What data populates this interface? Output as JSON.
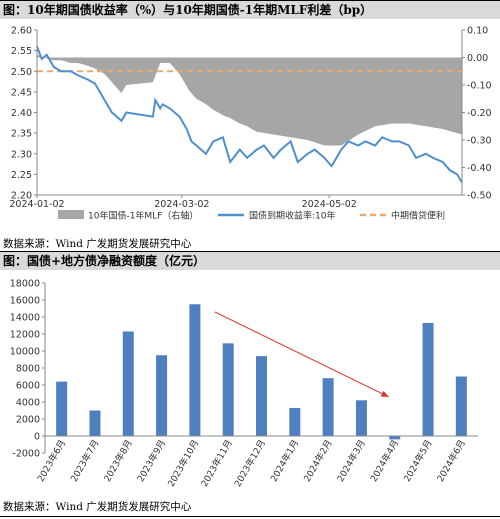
{
  "chart1": {
    "title": "图：10年期国债收益率（%）与10年期国债-1年期MLF利差（bp）",
    "source": "数据来源：Wind  广发期货发展研究中心",
    "chart_data": {
      "type": "line",
      "x_ticks": [
        "2024-01-02",
        "2024-03-02",
        "2024-05-02"
      ],
      "x_range": [
        "2024-01-02",
        "2024-06-26"
      ],
      "left_axis": {
        "range": [
          2.2,
          2.6
        ],
        "ticks": [
          "2.20",
          "2.25",
          "2.30",
          "2.35",
          "2.40",
          "2.45",
          "2.50",
          "2.55",
          "2.60"
        ]
      },
      "right_axis": {
        "range": [
          -0.5,
          0.1
        ],
        "ticks": [
          "-0.50",
          "-0.40",
          "-0.30",
          "-0.20",
          "-0.10",
          "0.00",
          "0.10"
        ]
      },
      "series": [
        {
          "name": "10年国债-1年MLF（右轴）",
          "type": "area",
          "axis": "right",
          "color": "#a6a6a6",
          "x": [
            "2024-01-02",
            "2024-01-05",
            "2024-01-08",
            "2024-01-12",
            "2024-01-16",
            "2024-01-19",
            "2024-01-23",
            "2024-01-26",
            "2024-01-30",
            "2024-02-02",
            "2024-02-06",
            "2024-02-08",
            "2024-02-19",
            "2024-02-22",
            "2024-02-26",
            "2024-03-01",
            "2024-03-05",
            "2024-03-08",
            "2024-03-12",
            "2024-03-15",
            "2024-03-19",
            "2024-03-22",
            "2024-03-26",
            "2024-03-29",
            "2024-04-02",
            "2024-04-09",
            "2024-04-16",
            "2024-04-23",
            "2024-04-30",
            "2024-05-07",
            "2024-05-14",
            "2024-05-21",
            "2024-05-28",
            "2024-06-04",
            "2024-06-11",
            "2024-06-18",
            "2024-06-26"
          ],
          "values": [
            0.01,
            0.0,
            -0.01,
            -0.01,
            -0.02,
            -0.02,
            -0.03,
            -0.04,
            -0.06,
            -0.09,
            -0.13,
            -0.1,
            -0.09,
            -0.02,
            -0.02,
            -0.06,
            -0.12,
            -0.15,
            -0.17,
            -0.19,
            -0.21,
            -0.22,
            -0.24,
            -0.25,
            -0.27,
            -0.28,
            -0.29,
            -0.3,
            -0.32,
            -0.32,
            -0.28,
            -0.25,
            -0.24,
            -0.24,
            -0.25,
            -0.26,
            -0.28
          ]
        },
        {
          "name": "国债到期收益率:10年",
          "type": "line",
          "axis": "left",
          "color": "#4f8fcd",
          "x": [
            "2024-01-02",
            "2024-01-04",
            "2024-01-06",
            "2024-01-09",
            "2024-01-12",
            "2024-01-16",
            "2024-01-19",
            "2024-01-23",
            "2024-01-26",
            "2024-01-30",
            "2024-02-02",
            "2024-02-06",
            "2024-02-08",
            "2024-02-19",
            "2024-02-20",
            "2024-02-22",
            "2024-02-23",
            "2024-02-26",
            "2024-03-01",
            "2024-03-04",
            "2024-03-06",
            "2024-03-08",
            "2024-03-12",
            "2024-03-15",
            "2024-03-19",
            "2024-03-22",
            "2024-03-26",
            "2024-03-29",
            "2024-04-02",
            "2024-04-05",
            "2024-04-09",
            "2024-04-12",
            "2024-04-16",
            "2024-04-19",
            "2024-04-23",
            "2024-04-26",
            "2024-04-30",
            "2024-05-03",
            "2024-05-07",
            "2024-05-10",
            "2024-05-14",
            "2024-05-17",
            "2024-05-21",
            "2024-05-24",
            "2024-05-28",
            "2024-05-31",
            "2024-06-04",
            "2024-06-07",
            "2024-06-11",
            "2024-06-14",
            "2024-06-18",
            "2024-06-21",
            "2024-06-24",
            "2024-06-26"
          ],
          "values": [
            2.56,
            2.53,
            2.54,
            2.51,
            2.5,
            2.5,
            2.49,
            2.48,
            2.47,
            2.43,
            2.4,
            2.38,
            2.4,
            2.39,
            2.43,
            2.41,
            2.42,
            2.41,
            2.39,
            2.36,
            2.33,
            2.32,
            2.3,
            2.33,
            2.34,
            2.28,
            2.31,
            2.29,
            2.31,
            2.32,
            2.29,
            2.31,
            2.33,
            2.28,
            2.3,
            2.31,
            2.29,
            2.27,
            2.31,
            2.33,
            2.32,
            2.33,
            2.32,
            2.34,
            2.33,
            2.33,
            2.32,
            2.29,
            2.3,
            2.29,
            2.28,
            2.26,
            2.25,
            2.23
          ]
        },
        {
          "name": "中期借贷便利",
          "type": "line",
          "axis": "left",
          "style": "dashed",
          "color": "#f0a868",
          "x": [
            "2024-01-02",
            "2024-06-26"
          ],
          "values": [
            2.5,
            2.5
          ]
        }
      ]
    }
  },
  "chart2": {
    "title": "图：国债+地方债净融资额度（亿元）",
    "source": "数据来源：Wind  广发期货发展研究中心",
    "chart_data": {
      "type": "bar",
      "categories": [
        "2023年6月",
        "2023年7月",
        "2023年8月",
        "2023年9月",
        "2023年10月",
        "2023年11月",
        "2023年12月",
        "2024年1月",
        "2024年2月",
        "2024年3月",
        "2024年4月",
        "2024年5月",
        "2024年6月"
      ],
      "values": [
        6400,
        3000,
        12300,
        9500,
        15500,
        10900,
        9400,
        3300,
        6800,
        4200,
        -400,
        13300,
        7000
      ],
      "ylim": [
        -2000,
        18000
      ],
      "y_ticks": [
        "-2000",
        "0",
        "2000",
        "4000",
        "6000",
        "8000",
        "10000",
        "12000",
        "14000",
        "16000",
        "18000"
      ],
      "bar_color": "#4f7fbf",
      "annotation": {
        "type": "arrow",
        "color": "#d9322b",
        "from": {
          "category": "2023年10月",
          "value": 14600
        },
        "to": {
          "category": "2024年4月",
          "value": 4600
        }
      }
    }
  }
}
